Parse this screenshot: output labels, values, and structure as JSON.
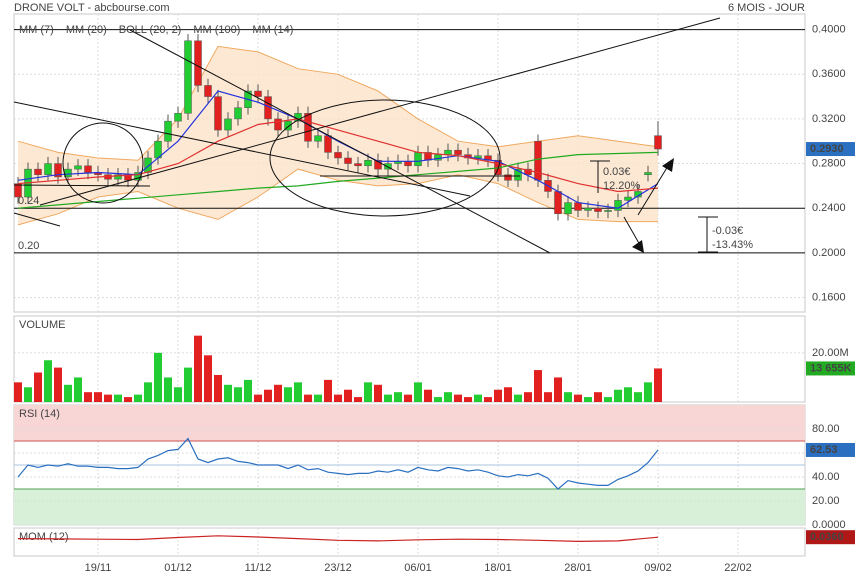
{
  "header": {
    "title": "DRONE VOLT - abcbourse.com",
    "period": "6 MOIS - JOUR"
  },
  "chart_data": [
    {
      "type": "candlestick",
      "xlim": [
        -0.4,
        78.7
      ],
      "xticks": [
        {
          "value": 8,
          "label": "19/11"
        },
        {
          "value": 16,
          "label": "01/12"
        },
        {
          "value": 24,
          "label": "11/12"
        },
        {
          "value": 32,
          "label": "23/12"
        },
        {
          "value": 40,
          "label": "06/01"
        },
        {
          "value": 48,
          "label": "18/01"
        },
        {
          "value": 56,
          "label": "28/01"
        },
        {
          "value": 64,
          "label": "09/02"
        },
        {
          "value": 72,
          "label": "22/02"
        }
      ],
      "ylim": [
        0.147,
        0.414
      ],
      "yticks": [
        {
          "value": 0.4,
          "label": "0.4000"
        },
        {
          "value": 0.36,
          "label": "0.3600"
        },
        {
          "value": 0.32,
          "label": "0.3200"
        },
        {
          "value": 0.28,
          "label": "0.2800"
        },
        {
          "value": 0.24,
          "label": "0.2400"
        },
        {
          "value": 0.2,
          "label": "0.2000"
        },
        {
          "value": 0.16,
          "label": "0.1600"
        }
      ],
      "grid": true,
      "up_color": "#22cc33",
      "down_color": "#e32020",
      "open": [
        0.262,
        0.25,
        0.275,
        0.27,
        0.28,
        0.268,
        0.275,
        0.278,
        0.272,
        0.27,
        0.266,
        0.27,
        0.265,
        0.272,
        0.285,
        0.3,
        0.318,
        0.325,
        0.39,
        0.35,
        0.34,
        0.31,
        0.32,
        0.33,
        0.345,
        0.34,
        0.32,
        0.31,
        0.318,
        0.325,
        0.3,
        0.305,
        0.29,
        0.285,
        0.28,
        0.278,
        0.283,
        0.275,
        0.28,
        0.282,
        0.278,
        0.29,
        0.283,
        0.288,
        0.292,
        0.288,
        0.285,
        0.287,
        0.283,
        0.27,
        0.265,
        0.275,
        0.3,
        0.265,
        0.255,
        0.235,
        0.245,
        0.238,
        0.24,
        0.237,
        0.238,
        0.247,
        0.25,
        0.27,
        0.305
      ],
      "high": [
        0.268,
        0.281,
        0.281,
        0.286,
        0.286,
        0.281,
        0.284,
        0.284,
        0.278,
        0.276,
        0.276,
        0.276,
        0.278,
        0.291,
        0.306,
        0.324,
        0.331,
        0.396,
        0.396,
        0.356,
        0.346,
        0.326,
        0.336,
        0.351,
        0.351,
        0.346,
        0.326,
        0.324,
        0.331,
        0.331,
        0.311,
        0.311,
        0.296,
        0.291,
        0.286,
        0.289,
        0.289,
        0.286,
        0.288,
        0.288,
        0.296,
        0.296,
        0.294,
        0.298,
        0.298,
        0.294,
        0.293,
        0.293,
        0.289,
        0.276,
        0.281,
        0.281,
        0.306,
        0.271,
        0.261,
        0.251,
        0.251,
        0.246,
        0.246,
        0.244,
        0.253,
        0.256,
        0.261,
        0.278,
        0.318
      ],
      "low": [
        0.244,
        0.244,
        0.264,
        0.264,
        0.262,
        0.262,
        0.269,
        0.266,
        0.264,
        0.26,
        0.26,
        0.259,
        0.259,
        0.266,
        0.279,
        0.294,
        0.312,
        0.319,
        0.344,
        0.334,
        0.304,
        0.304,
        0.314,
        0.324,
        0.334,
        0.314,
        0.304,
        0.304,
        0.312,
        0.294,
        0.294,
        0.284,
        0.279,
        0.274,
        0.272,
        0.272,
        0.269,
        0.269,
        0.274,
        0.272,
        0.272,
        0.277,
        0.277,
        0.282,
        0.282,
        0.279,
        0.279,
        0.277,
        0.264,
        0.259,
        0.259,
        0.264,
        0.259,
        0.249,
        0.229,
        0.229,
        0.232,
        0.232,
        0.231,
        0.231,
        0.232,
        0.241,
        0.244,
        0.264,
        0.287
      ],
      "close": [
        0.25,
        0.275,
        0.27,
        0.28,
        0.268,
        0.275,
        0.278,
        0.272,
        0.27,
        0.266,
        0.27,
        0.265,
        0.272,
        0.285,
        0.3,
        0.318,
        0.325,
        0.39,
        0.35,
        0.34,
        0.31,
        0.32,
        0.33,
        0.345,
        0.34,
        0.32,
        0.31,
        0.318,
        0.325,
        0.3,
        0.305,
        0.29,
        0.285,
        0.28,
        0.278,
        0.283,
        0.275,
        0.28,
        0.282,
        0.278,
        0.29,
        0.283,
        0.288,
        0.292,
        0.288,
        0.285,
        0.287,
        0.283,
        0.27,
        0.265,
        0.275,
        0.27,
        0.265,
        0.255,
        0.235,
        0.245,
        0.238,
        0.24,
        0.237,
        0.238,
        0.247,
        0.25,
        0.255,
        0.272,
        0.293
      ],
      "series": [
        {
          "name": "MM (7)",
          "color": "#2233dd",
          "x": [
            0,
            4,
            8,
            12,
            16,
            20,
            24,
            28,
            32,
            36,
            40,
            44,
            48,
            52,
            56,
            60,
            64
          ],
          "values": [
            0.265,
            0.27,
            0.272,
            0.27,
            0.3,
            0.345,
            0.335,
            0.32,
            0.3,
            0.282,
            0.282,
            0.287,
            0.282,
            0.265,
            0.245,
            0.24,
            0.262
          ]
        },
        {
          "name": "MM (20)",
          "color": "#e03030",
          "x": [
            0,
            4,
            8,
            12,
            16,
            20,
            24,
            28,
            32,
            36,
            40,
            44,
            48,
            52,
            56,
            60,
            64
          ],
          "values": [
            0.262,
            0.265,
            0.268,
            0.27,
            0.28,
            0.3,
            0.315,
            0.32,
            0.31,
            0.3,
            0.29,
            0.287,
            0.28,
            0.272,
            0.262,
            0.255,
            0.258
          ]
        },
        {
          "name": "BOLL (20, 2)",
          "color": "#f0a860",
          "x": [
            0,
            4,
            8,
            12,
            16,
            20,
            24,
            28,
            32,
            36,
            40,
            44,
            48,
            52,
            56,
            60,
            64
          ],
          "upper": [
            0.3,
            0.29,
            0.285,
            0.283,
            0.32,
            0.385,
            0.38,
            0.365,
            0.36,
            0.345,
            0.32,
            0.3,
            0.295,
            0.3,
            0.305,
            0.3,
            0.295
          ],
          "lower": [
            0.225,
            0.235,
            0.25,
            0.255,
            0.24,
            0.23,
            0.25,
            0.275,
            0.265,
            0.26,
            0.262,
            0.27,
            0.262,
            0.245,
            0.23,
            0.228,
            0.228
          ]
        },
        {
          "name": "MM (100)",
          "color": "#22aa22",
          "x": [
            0,
            4,
            8,
            12,
            16,
            20,
            24,
            28,
            32,
            36,
            40,
            44,
            48,
            52,
            56,
            60,
            64
          ],
          "values": [
            0.24,
            0.243,
            0.246,
            0.249,
            0.252,
            0.255,
            0.258,
            0.26,
            0.264,
            0.267,
            0.27,
            0.273,
            0.276,
            0.284,
            0.288,
            0.289,
            0.29
          ]
        },
        {
          "name": "MM (14)",
          "color": "#222222"
        }
      ],
      "levels": [
        {
          "value": 0.4
        },
        {
          "value": 0.24,
          "label": "0.24"
        },
        {
          "value": 0.2,
          "label": "0.20"
        }
      ],
      "last": {
        "value": 0.293,
        "label": "0.2930"
      },
      "annotations": [
        "0.03€",
        "12.20%",
        "-0.03€",
        "-13.43%"
      ]
    },
    {
      "type": "bar",
      "title": "VOLUME",
      "ylim": [
        0,
        35000000
      ],
      "yticks": [
        {
          "value": 20000000,
          "label": "20.00M"
        }
      ],
      "values": [
        8000000,
        6000000,
        12000000,
        17000000,
        14000000,
        7000000,
        10000000,
        4000000,
        4000000,
        3000000,
        3000000,
        2000000,
        3000000,
        8000000,
        20000000,
        10000000,
        6000000,
        14000000,
        27000000,
        19000000,
        11000000,
        7000000,
        6000000,
        9000000,
        3000000,
        5000000,
        7000000,
        6000000,
        8000000,
        3000000,
        3000000,
        9000000,
        3000000,
        5000000,
        2000000,
        8000000,
        7000000,
        3000000,
        4000000,
        3000000,
        8000000,
        5000000,
        2000000,
        4000000,
        3000000,
        2000000,
        3000000,
        2000000,
        5000000,
        6000000,
        3000000,
        4000000,
        13000000,
        4000000,
        10000000,
        4000000,
        3000000,
        2000000,
        4000000,
        2000000,
        5000000,
        6000000,
        4000000,
        8000000,
        13655000
      ],
      "last": {
        "value": 13655000,
        "label": "13 655K"
      }
    },
    {
      "type": "line",
      "title": "RSI (14)",
      "color": "#2a6fc0",
      "ylim": [
        0,
        100
      ],
      "yticks": [
        {
          "value": 80,
          "label": "80.00"
        },
        {
          "value": 60,
          "label": "60.00"
        },
        {
          "value": 40,
          "label": "40.00"
        },
        {
          "value": 20,
          "label": "20.00"
        },
        {
          "value": 0,
          "label": "0.0000"
        }
      ],
      "overbought": 70,
      "midline": 50,
      "oversold": 30,
      "values": [
        40,
        50,
        48,
        50,
        49,
        51,
        49,
        49,
        48,
        48,
        47,
        47,
        48,
        55,
        58,
        62,
        63,
        72,
        55,
        52,
        55,
        56,
        53,
        52,
        50,
        50,
        50,
        47,
        50,
        46,
        47,
        44,
        43,
        42,
        43,
        43,
        45,
        44,
        46,
        44,
        48,
        46,
        45,
        48,
        47,
        45,
        46,
        44,
        41,
        40,
        42,
        41,
        43,
        39,
        30,
        37,
        35,
        34,
        33,
        33,
        38,
        41,
        45,
        52,
        62.53
      ],
      "last": {
        "value": 62.53,
        "label": "62.53"
      }
    },
    {
      "type": "line",
      "title": "MOM (12)",
      "color": "#cc2222",
      "ylim": [
        -0.3,
        0.2
      ],
      "x": [
        0,
        4,
        8,
        12,
        16,
        20,
        24,
        28,
        32,
        36,
        40,
        44,
        48,
        52,
        56,
        60,
        64
      ],
      "values": [
        0.01,
        0.005,
        0.0,
        -0.005,
        0.03,
        0.06,
        0.04,
        0.01,
        -0.02,
        -0.03,
        -0.01,
        0.0,
        -0.005,
        -0.02,
        -0.04,
        -0.03,
        0.036
      ],
      "last": {
        "value": 0.036,
        "label": "0.0360"
      }
    }
  ]
}
